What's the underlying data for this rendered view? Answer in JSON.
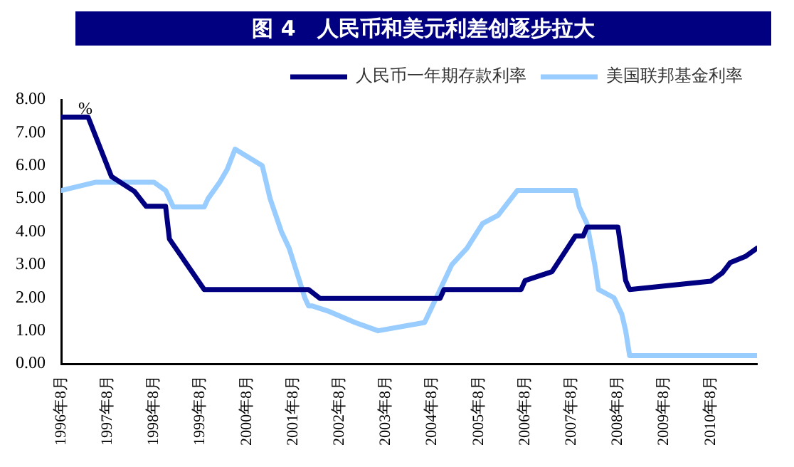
{
  "chart_data": {
    "type": "line",
    "title": "图 4　人民币和美元利差创逐步拉大",
    "ylabel": "%",
    "xlim": [
      "1996-08",
      "2011-08"
    ],
    "xticks": [
      {
        "value": "1996-08",
        "label": "1996年8月"
      },
      {
        "value": "1997-08",
        "label": "1997年8月"
      },
      {
        "value": "1998-08",
        "label": "1998年8月"
      },
      {
        "value": "1999-08",
        "label": "1999年8月"
      },
      {
        "value": "2000-08",
        "label": "2000年8月"
      },
      {
        "value": "2001-08",
        "label": "2001年8月"
      },
      {
        "value": "2002-08",
        "label": "2002年8月"
      },
      {
        "value": "2003-08",
        "label": "2003年8月"
      },
      {
        "value": "2004-08",
        "label": "2004年8月"
      },
      {
        "value": "2005-08",
        "label": "2005年8月"
      },
      {
        "value": "2006-08",
        "label": "2006年8月"
      },
      {
        "value": "2007-08",
        "label": "2007年8月"
      },
      {
        "value": "2008-08",
        "label": "2008年8月"
      },
      {
        "value": "2009-08",
        "label": "2009年8月"
      },
      {
        "value": "2010-08",
        "label": "2010年8月"
      }
    ],
    "ylim": [
      0,
      8
    ],
    "yticks": [
      {
        "value": 0,
        "label": "0.00"
      },
      {
        "value": 1,
        "label": "1.00"
      },
      {
        "value": 2,
        "label": "2.00"
      },
      {
        "value": 3,
        "label": "3.00"
      },
      {
        "value": 4,
        "label": "4.00"
      },
      {
        "value": 5,
        "label": "5.00"
      },
      {
        "value": 6,
        "label": "6.00"
      },
      {
        "value": 7,
        "label": "7.00"
      },
      {
        "value": 8,
        "label": "8.00"
      }
    ],
    "grid": false,
    "legend": "top right",
    "marker": "none",
    "line_style": "solid",
    "series": [
      {
        "name": "人民币一年期存款利率",
        "color": "#000080",
        "x": [
          "1996-08",
          "1997-03",
          "1997-09",
          "1998-03",
          "1998-06",
          "1998-11",
          "1998-12",
          "1999-09",
          "2001-12",
          "2002-03",
          "2004-10",
          "2004-11",
          "2006-07",
          "2006-08",
          "2007-03",
          "2007-06",
          "2007-09",
          "2007-11",
          "2007-12",
          "2008-08",
          "2008-10",
          "2008-11",
          "2010-08",
          "2010-11",
          "2011-01",
          "2011-05",
          "2011-08"
        ],
        "values": [
          7.47,
          7.47,
          5.67,
          5.22,
          4.77,
          4.77,
          3.78,
          2.25,
          2.25,
          1.98,
          1.98,
          2.25,
          2.25,
          2.52,
          2.79,
          3.33,
          3.87,
          3.87,
          4.14,
          4.14,
          2.52,
          2.25,
          2.5,
          2.75,
          3.06,
          3.25,
          3.5
        ]
      },
      {
        "name": "美国联邦基金利率",
        "color": "#99ccff",
        "x": [
          "1996-08",
          "1997-05",
          "1998-08",
          "1998-11",
          "1999-01",
          "1999-09",
          "1999-10",
          "2000-01",
          "2000-03",
          "2000-05",
          "2000-12",
          "2001-02",
          "2001-05",
          "2001-07",
          "2001-11",
          "2001-12",
          "2002-01",
          "2002-05",
          "2002-12",
          "2003-06",
          "2004-06",
          "2004-09",
          "2005-01",
          "2005-05",
          "2005-09",
          "2006-01",
          "2006-06",
          "2007-09",
          "2007-10",
          "2007-12",
          "2008-02",
          "2008-03",
          "2008-07",
          "2008-09",
          "2008-10",
          "2008-11",
          "2011-08"
        ],
        "values": [
          5.25,
          5.5,
          5.5,
          5.25,
          4.75,
          4.75,
          5.0,
          5.5,
          5.9,
          6.5,
          6.0,
          5.0,
          4.0,
          3.5,
          2.0,
          1.75,
          1.75,
          1.6,
          1.25,
          1.0,
          1.25,
          2.0,
          3.0,
          3.5,
          4.25,
          4.5,
          5.25,
          5.25,
          4.75,
          4.25,
          3.0,
          2.25,
          2.0,
          1.5,
          1.0,
          0.25,
          0.25
        ]
      }
    ]
  }
}
